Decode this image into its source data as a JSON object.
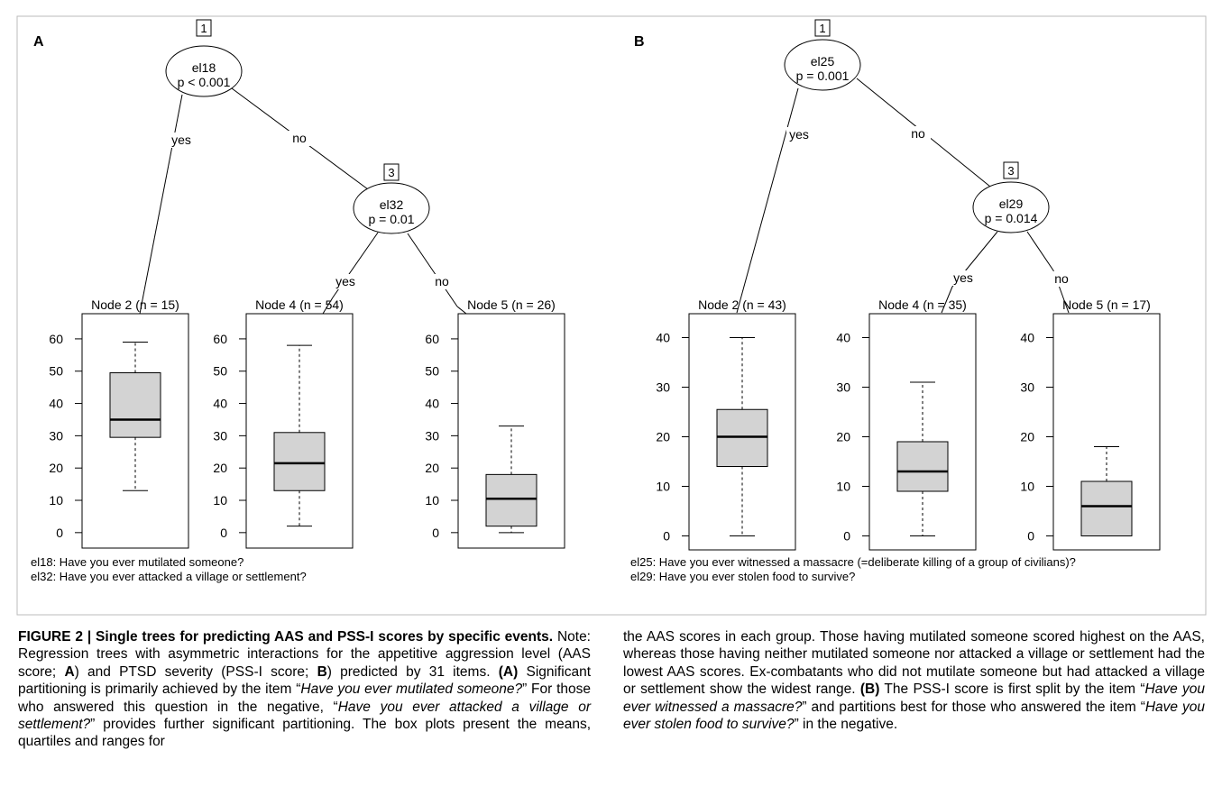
{
  "chart_data": [
    {
      "type": "regression_tree_boxplot",
      "panel": "A",
      "nodes": [
        {
          "id": "1",
          "variable": "el18",
          "p": "p < 0.001"
        },
        {
          "id": "3",
          "variable": "el32",
          "p": "p = 0.01"
        }
      ],
      "edges": {
        "node1_left": "yes",
        "node1_right": "no",
        "node3_left": "yes",
        "node3_right": "no"
      },
      "terminals": [
        {
          "label": "Node 2 (n = 15)",
          "min": 13,
          "q1": 29.5,
          "median": 35,
          "q3": 49.5,
          "max": 59
        },
        {
          "label": "Node 4 (n = 54)",
          "min": 2,
          "q1": 13,
          "median": 21.5,
          "q3": 31,
          "max": 58
        },
        {
          "label": "Node 5 (n = 26)",
          "min": 0,
          "q1": 2,
          "median": 10.5,
          "q3": 18,
          "max": 33
        }
      ],
      "y_ticks": [
        "0",
        "10",
        "20",
        "30",
        "40",
        "50",
        "60"
      ],
      "ylim": [
        -2,
        65
      ],
      "footnotes": [
        "el18:  Have you ever mutilated someone?",
        "el32:  Have you ever attacked a village or settlement?"
      ]
    },
    {
      "type": "regression_tree_boxplot",
      "panel": "B",
      "nodes": [
        {
          "id": "1",
          "variable": "el25",
          "p": "p = 0.001"
        },
        {
          "id": "3",
          "variable": "el29",
          "p": "p = 0.014"
        }
      ],
      "edges": {
        "node1_left": "yes",
        "node1_right": "no",
        "node3_left": "yes",
        "node3_right": "no"
      },
      "terminals": [
        {
          "label": "Node 2 (n = 43)",
          "min": 0,
          "q1": 14,
          "median": 20,
          "q3": 25.5,
          "max": 40
        },
        {
          "label": "Node 4 (n = 35)",
          "min": 0,
          "q1": 9,
          "median": 13,
          "q3": 19,
          "max": 31
        },
        {
          "label": "Node 5 (n = 17)",
          "min": 0,
          "q1": 0,
          "median": 6,
          "q3": 11,
          "max": 18
        }
      ],
      "y_ticks": [
        "0",
        "10",
        "20",
        "30",
        "40"
      ],
      "ylim": [
        -1,
        43
      ],
      "footnotes": [
        "el25:  Have you ever witnessed a massacre (=deliberate killing of a group of civilians)?",
        "el29:  Have you ever stolen food to survive?"
      ]
    }
  ],
  "caption": {
    "figure_label": "FIGURE 2 | Single trees for predicting AAS and PSS-I scores by specific events.",
    "left": {
      "p1": " Note: Regression trees with asymmetric interactions for the appetitive aggression level (AAS score; ",
      "a1": "A",
      "p2": ") and PTSD severity (PSS-I score; ",
      "b1": "B",
      "p3": ") predicted by 31 items. ",
      "a2": "(A)",
      "p4": " Significant partitioning is primarily achieved by the item “",
      "i1": "Have you ever mutilated someone?",
      "p5": "” For those who answered this question in the negative, “",
      "i2": "Have you ever attacked a village or settlement?",
      "p6": "” provides further significant partitioning. The box plots present the means, quartiles and ranges for"
    },
    "right": {
      "p1": "the AAS scores in each group. Those having mutilated someone scored highest on the AAS, whereas those having neither mutilated someone nor attacked a village or settlement had the lowest AAS scores. Ex-combatants who did not mutilate someone but had attacked a village or settlement show the widest range. ",
      "b2": "(B)",
      "p2": " The PSS-I score is first split by the item “",
      "i3": "Have you ever witnessed a massacre?",
      "p3": "” and partitions best for those who answered the item “",
      "i4": "Have you ever stolen food to survive?",
      "p4": "” in the negative."
    }
  }
}
